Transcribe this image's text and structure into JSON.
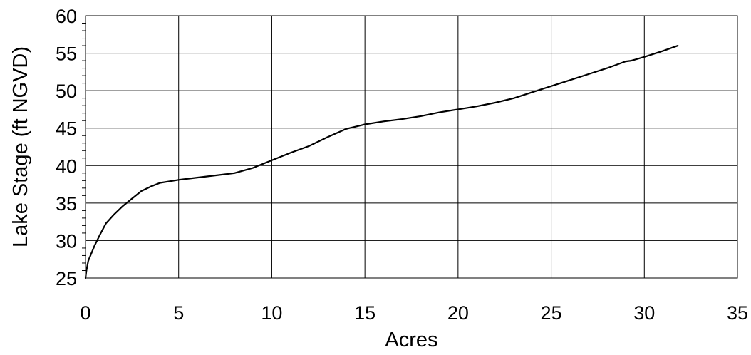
{
  "chart_data": {
    "type": "line",
    "title": "",
    "xlabel": "Acres",
    "ylabel": "Lake Stage (ft NGVD)",
    "xlim": [
      0,
      35
    ],
    "ylim": [
      25,
      60
    ],
    "x_ticks": [
      "0",
      "5",
      "10",
      "15",
      "20",
      "25",
      "30",
      "35"
    ],
    "y_ticks": [
      "25",
      "30",
      "35",
      "40",
      "45",
      "50",
      "55",
      "60"
    ],
    "grid": true,
    "legend": "none",
    "line_color": "#000000",
    "series": [
      {
        "x": [
          0.0,
          0.05,
          0.15,
          0.3,
          0.5,
          0.8,
          1.1,
          1.5,
          2.0,
          2.5,
          3.0,
          3.5,
          4.0,
          5.0,
          6.0,
          7.0,
          8.0,
          9.0,
          10.0,
          11.0,
          12.0,
          13.0,
          14.0,
          15.0,
          16.0,
          17.0,
          18.0,
          19.0,
          20.0,
          21.0,
          22.0,
          23.0,
          24.0,
          25.0,
          26.0,
          27.0,
          28.0,
          29.0,
          29.3,
          30.0,
          31.0,
          31.8
        ],
        "y": [
          25.0,
          26.0,
          27.3,
          28.2,
          29.4,
          30.9,
          32.3,
          33.4,
          34.6,
          35.6,
          36.6,
          37.2,
          37.7,
          38.1,
          38.4,
          38.7,
          39.0,
          39.7,
          40.7,
          41.7,
          42.6,
          43.8,
          44.9,
          45.5,
          45.9,
          46.2,
          46.6,
          47.1,
          47.5,
          47.9,
          48.4,
          49.0,
          49.8,
          50.6,
          51.4,
          52.2,
          53.0,
          53.9,
          54.0,
          54.5,
          55.3,
          56.0
        ]
      }
    ]
  }
}
